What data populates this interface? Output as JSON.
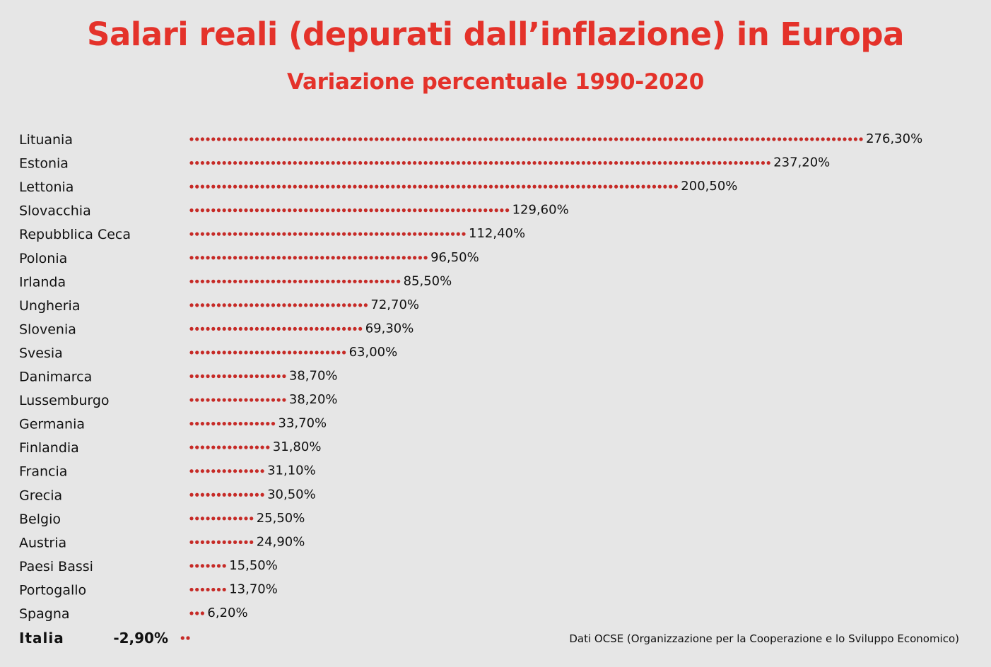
{
  "title": "Salari reali (depurati dall’inflazione) in Europa",
  "subtitle": "Variazione percentuale 1990-2020",
  "source": "Dati OCSE (Organizzazione per la Cooperazione e lo Sviluppo Economico)",
  "colors": {
    "dot": "#c62a26",
    "title": "#e4322a",
    "background": "#e6e6e6"
  },
  "chart_data": {
    "type": "bar",
    "style": "dotted horizontal bars",
    "title": "Salari reali (depurati dall’inflazione) in Europa",
    "subtitle": "Variazione percentuale 1990-2020",
    "xlabel": "",
    "ylabel": "",
    "grid": false,
    "categories": [
      "Lituania",
      "Estonia",
      "Lettonia",
      "Slovacchia",
      "Repubblica Ceca",
      "Polonia",
      "Irlanda",
      "Ungheria",
      "Slovenia",
      "Svesia",
      "Danimarca",
      "Lussemburgo",
      "Germania",
      "Finlandia",
      "Francia",
      "Grecia",
      "Belgio",
      "Austria",
      "Paesi Bassi",
      "Portogallo",
      "Spagna",
      "Italia"
    ],
    "values": [
      276.3,
      237.2,
      200.5,
      129.6,
      112.4,
      96.5,
      85.5,
      72.7,
      69.3,
      63.0,
      38.7,
      38.2,
      33.7,
      31.8,
      31.1,
      30.5,
      25.5,
      24.9,
      15.5,
      13.7,
      6.2,
      -2.9
    ],
    "value_labels": [
      "276,30%",
      "237,20%",
      "200,50%",
      "129,60%",
      "112,40%",
      "96,50%",
      "85,50%",
      "72,70%",
      "69,30%",
      "63,00%",
      "38,70%",
      "38,20%",
      "33,70%",
      "31,80%",
      "31,10%",
      "30,50%",
      "25,50%",
      "24,90%",
      "15,50%",
      "13,70%",
      "6,20%",
      "-2,90%"
    ],
    "highlight": "Italia"
  }
}
